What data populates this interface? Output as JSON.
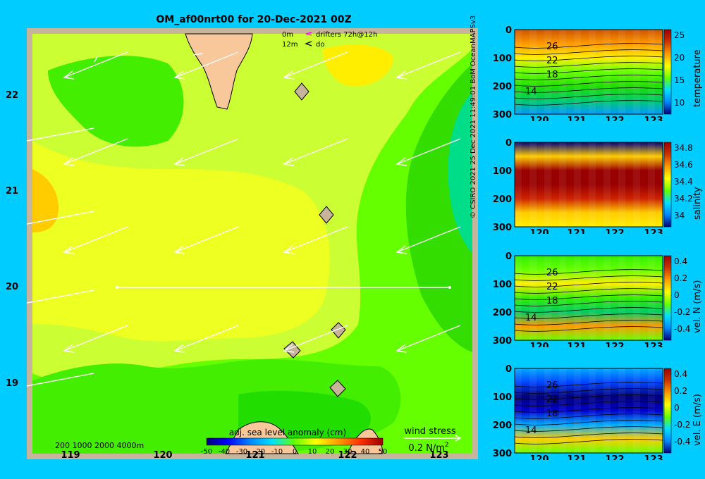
{
  "title": "OM_af00nrt00 for 20-Dec-2021 00Z",
  "legend": {
    "depth_0": "0m",
    "depth_12": "12m",
    "drifters": "drifters 72h@12h",
    "do": "do"
  },
  "map": {
    "lon_ticks": [
      "119",
      "120",
      "121",
      "122",
      "123"
    ],
    "lat_ticks": [
      "22",
      "21",
      "20",
      "19"
    ],
    "bathymetry_label": "200  1000  2000  4000m",
    "colorbar_title": "adj. sea level anomaly (cm)",
    "colorbar_ticks": [
      "-50",
      "-40",
      "-30",
      "-20",
      "-10",
      "0",
      "10",
      "20",
      "30",
      "40",
      "50"
    ],
    "wind_stress_label": "wind stress",
    "wind_stress_scale": "0.2 N/m",
    "wind_stress_sup": "2"
  },
  "credit": "© CSIRO 2021   25 Dec 2021 11:49:01 BoM OceanMAPSv3",
  "panels": [
    {
      "label": "temperature",
      "depth_ticks": [
        "0",
        "100",
        "200",
        "300"
      ],
      "lon_ticks": [
        "120",
        "121",
        "122",
        "123"
      ],
      "cbar_ticks": [
        "25",
        "20",
        "15",
        "10"
      ],
      "contour_labels": [
        "26",
        "22",
        "18",
        "14"
      ]
    },
    {
      "label": "salinity",
      "depth_ticks": [
        "0",
        "100",
        "200",
        "300"
      ],
      "lon_ticks": [
        "120",
        "121",
        "122",
        "123"
      ],
      "cbar_ticks": [
        "34.8",
        "34.6",
        "34.4",
        "34.2",
        "34"
      ],
      "contour_labels": []
    },
    {
      "label": "vel. N (m/s)",
      "depth_ticks": [
        "0",
        "100",
        "200",
        "300"
      ],
      "lon_ticks": [
        "120",
        "121",
        "122",
        "123"
      ],
      "cbar_ticks": [
        "0.4",
        "0.2",
        "0",
        "-0.2",
        "-0.4"
      ],
      "contour_labels": [
        "26",
        "22",
        "18",
        "14"
      ]
    },
    {
      "label": "vel. E (m/s)",
      "depth_ticks": [
        "0",
        "100",
        "200",
        "300"
      ],
      "lon_ticks": [
        "120",
        "121",
        "122",
        "123"
      ],
      "cbar_ticks": [
        "0.4",
        "0.2",
        "0",
        "-0.2",
        "-0.4"
      ],
      "contour_labels": [
        "26",
        "22",
        "18",
        "14"
      ]
    }
  ],
  "colors": {
    "background": "#00ccff",
    "land": "#f9c89a",
    "shelf": "#c8b49a",
    "ssh_low": "#66ff00",
    "ssh_mid": "#ccff33",
    "ssh_high": "#ffee00"
  }
}
